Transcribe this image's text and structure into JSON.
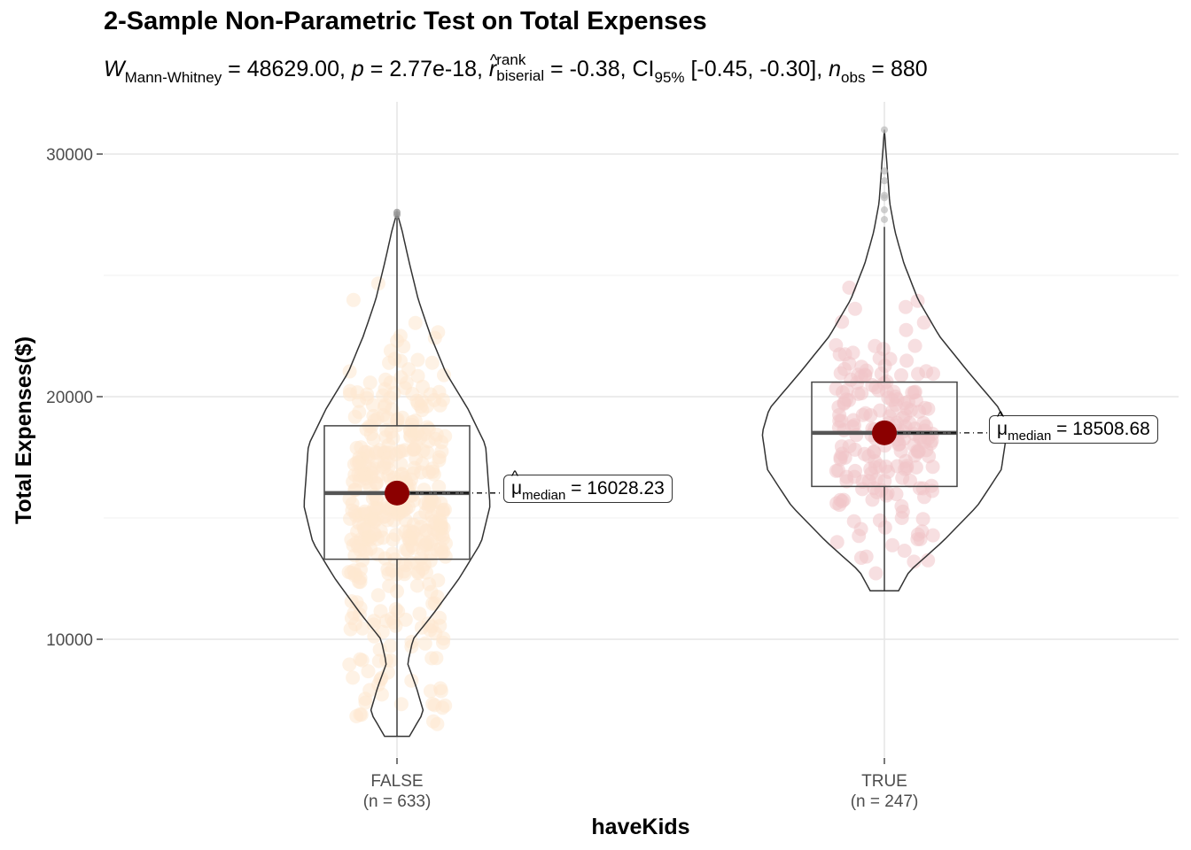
{
  "chart_data": {
    "type": "violin-box-scatter",
    "title": "2-Sample Non-Parametric Test on Total Expenses",
    "subtitle": {
      "W_symbol": "W",
      "W_sub": "Mann-Whitney",
      "W_value": "48629.00",
      "p_symbol": "p",
      "p_value": "2.77e-18",
      "r_symbol": "r",
      "r_sup": "rank",
      "r_sub": "biserial",
      "r_value": "-0.38",
      "ci_symbol": "CI",
      "ci_sub": "95%",
      "ci_value": "[-0.45, -0.30]",
      "n_symbol": "n",
      "n_sub": "obs",
      "n_value": "880"
    },
    "xlabel": "haveKids",
    "ylabel": "Total Expenses($)",
    "ylim": [
      5000,
      32000
    ],
    "yticks": [
      10000,
      20000,
      30000
    ],
    "ytick_labels": [
      "10000",
      "20000",
      "30000"
    ],
    "grid": true,
    "groups": [
      {
        "category": "FALSE",
        "n_label": "(n = 633)",
        "color": "#fde7cf",
        "median": 16028.23,
        "median_label": "16028.23",
        "median_label_sub": "median",
        "q1": 13300,
        "q3": 18800,
        "whisker_low": 6000,
        "whisker_high": 27500,
        "y_min": 6000,
        "y_max": 27600
      },
      {
        "category": "TRUE",
        "n_label": "(n = 247)",
        "color": "#f1c4c8",
        "median": 18508.68,
        "median_label": "18508.68",
        "median_label_sub": "median",
        "q1": 16300,
        "q3": 20600,
        "whisker_low": 12000,
        "whisker_high": 27000,
        "y_min": 12000,
        "y_max": 31000
      }
    ],
    "median_point_color": "#8b0000"
  }
}
